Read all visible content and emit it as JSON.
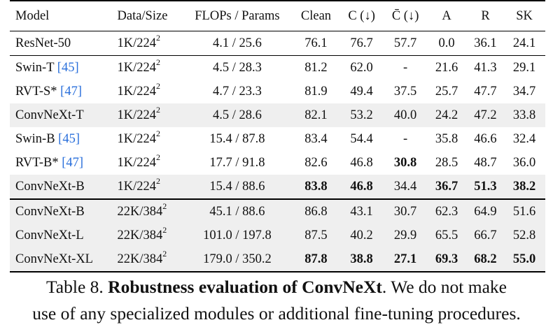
{
  "table": {
    "headers": [
      "Model",
      "Data/Size",
      "FLOPs / Params",
      "Clean",
      "C (↓)",
      "C̄ (↓)",
      "A",
      "R",
      "SK"
    ],
    "groups": [
      {
        "rows": [
          {
            "model": "ResNet-50",
            "cite": "",
            "size_base": "1K/224",
            "size_exp": "2",
            "flops": "4.1 / 25.6",
            "clean": "76.1",
            "c": "76.7",
            "cbar": "57.7",
            "a": "0.0",
            "r": "36.1",
            "sk": "24.1",
            "shaded": false,
            "bold": []
          }
        ]
      },
      {
        "rows": [
          {
            "model": "Swin-T",
            "cite": "[45]",
            "size_base": "1K/224",
            "size_exp": "2",
            "flops": "4.5 / 28.3",
            "clean": "81.2",
            "c": "62.0",
            "cbar": "-",
            "a": "21.6",
            "r": "41.3",
            "sk": "29.1",
            "shaded": false,
            "bold": []
          },
          {
            "model": "RVT-S*",
            "cite": "[47]",
            "size_base": "1K/224",
            "size_exp": "2",
            "flops": "4.7 / 23.3",
            "clean": "81.9",
            "c": "49.4",
            "cbar": "37.5",
            "a": "25.7",
            "r": "47.7",
            "sk": "34.7",
            "shaded": false,
            "bold": []
          },
          {
            "model": "ConvNeXt-T",
            "cite": "",
            "size_base": "1K/224",
            "size_exp": "2",
            "flops": "4.5 / 28.6",
            "clean": "82.1",
            "c": "53.2",
            "cbar": "40.0",
            "a": "24.2",
            "r": "47.2",
            "sk": "33.8",
            "shaded": true,
            "bold": []
          },
          {
            "model": "Swin-B",
            "cite": "[45]",
            "size_base": "1K/224",
            "size_exp": "2",
            "flops": "15.4 / 87.8",
            "clean": "83.4",
            "c": "54.4",
            "cbar": "-",
            "a": "35.8",
            "r": "46.6",
            "sk": "32.4",
            "shaded": false,
            "bold": []
          },
          {
            "model": "RVT-B*",
            "cite": "[47]",
            "size_base": "1K/224",
            "size_exp": "2",
            "flops": "17.7 / 91.8",
            "clean": "82.6",
            "c": "46.8",
            "cbar": "30.8",
            "a": "28.5",
            "r": "48.7",
            "sk": "36.0",
            "shaded": false,
            "bold": [
              "cbar"
            ]
          },
          {
            "model": "ConvNeXt-B",
            "cite": "",
            "size_base": "1K/224",
            "size_exp": "2",
            "flops": "15.4 / 88.6",
            "clean": "83.8",
            "c": "46.8",
            "cbar": "34.4",
            "a": "36.7",
            "r": "51.3",
            "sk": "38.2",
            "shaded": true,
            "bold": [
              "clean",
              "c",
              "a",
              "r",
              "sk"
            ]
          }
        ]
      },
      {
        "rows": [
          {
            "model": "ConvNeXt-B",
            "cite": "",
            "size_base": "22K/384",
            "size_exp": "2",
            "flops": "45.1 / 88.6",
            "clean": "86.8",
            "c": "43.1",
            "cbar": "30.7",
            "a": "62.3",
            "r": "64.9",
            "sk": "51.6",
            "shaded": true,
            "bold": []
          },
          {
            "model": "ConvNeXt-L",
            "cite": "",
            "size_base": "22K/384",
            "size_exp": "2",
            "flops": "101.0 / 197.8",
            "clean": "87.5",
            "c": "40.2",
            "cbar": "29.9",
            "a": "65.5",
            "r": "66.7",
            "sk": "52.8",
            "shaded": true,
            "bold": []
          },
          {
            "model": "ConvNeXt-XL",
            "cite": "",
            "size_base": "22K/384",
            "size_exp": "2",
            "flops": "179.0 / 350.2",
            "clean": "87.8",
            "c": "38.8",
            "cbar": "27.1",
            "a": "69.3",
            "r": "68.2",
            "sk": "55.0",
            "shaded": true,
            "bold": [
              "clean",
              "c",
              "cbar",
              "a",
              "r",
              "sk"
            ]
          }
        ]
      }
    ]
  },
  "caption": {
    "label": "Table 8.",
    "bold_title": "Robustness evaluation of ConvNeXt",
    "line1_rest": ". We do not make",
    "line2": "use of any specialized modules or additional fine-tuning procedures."
  }
}
